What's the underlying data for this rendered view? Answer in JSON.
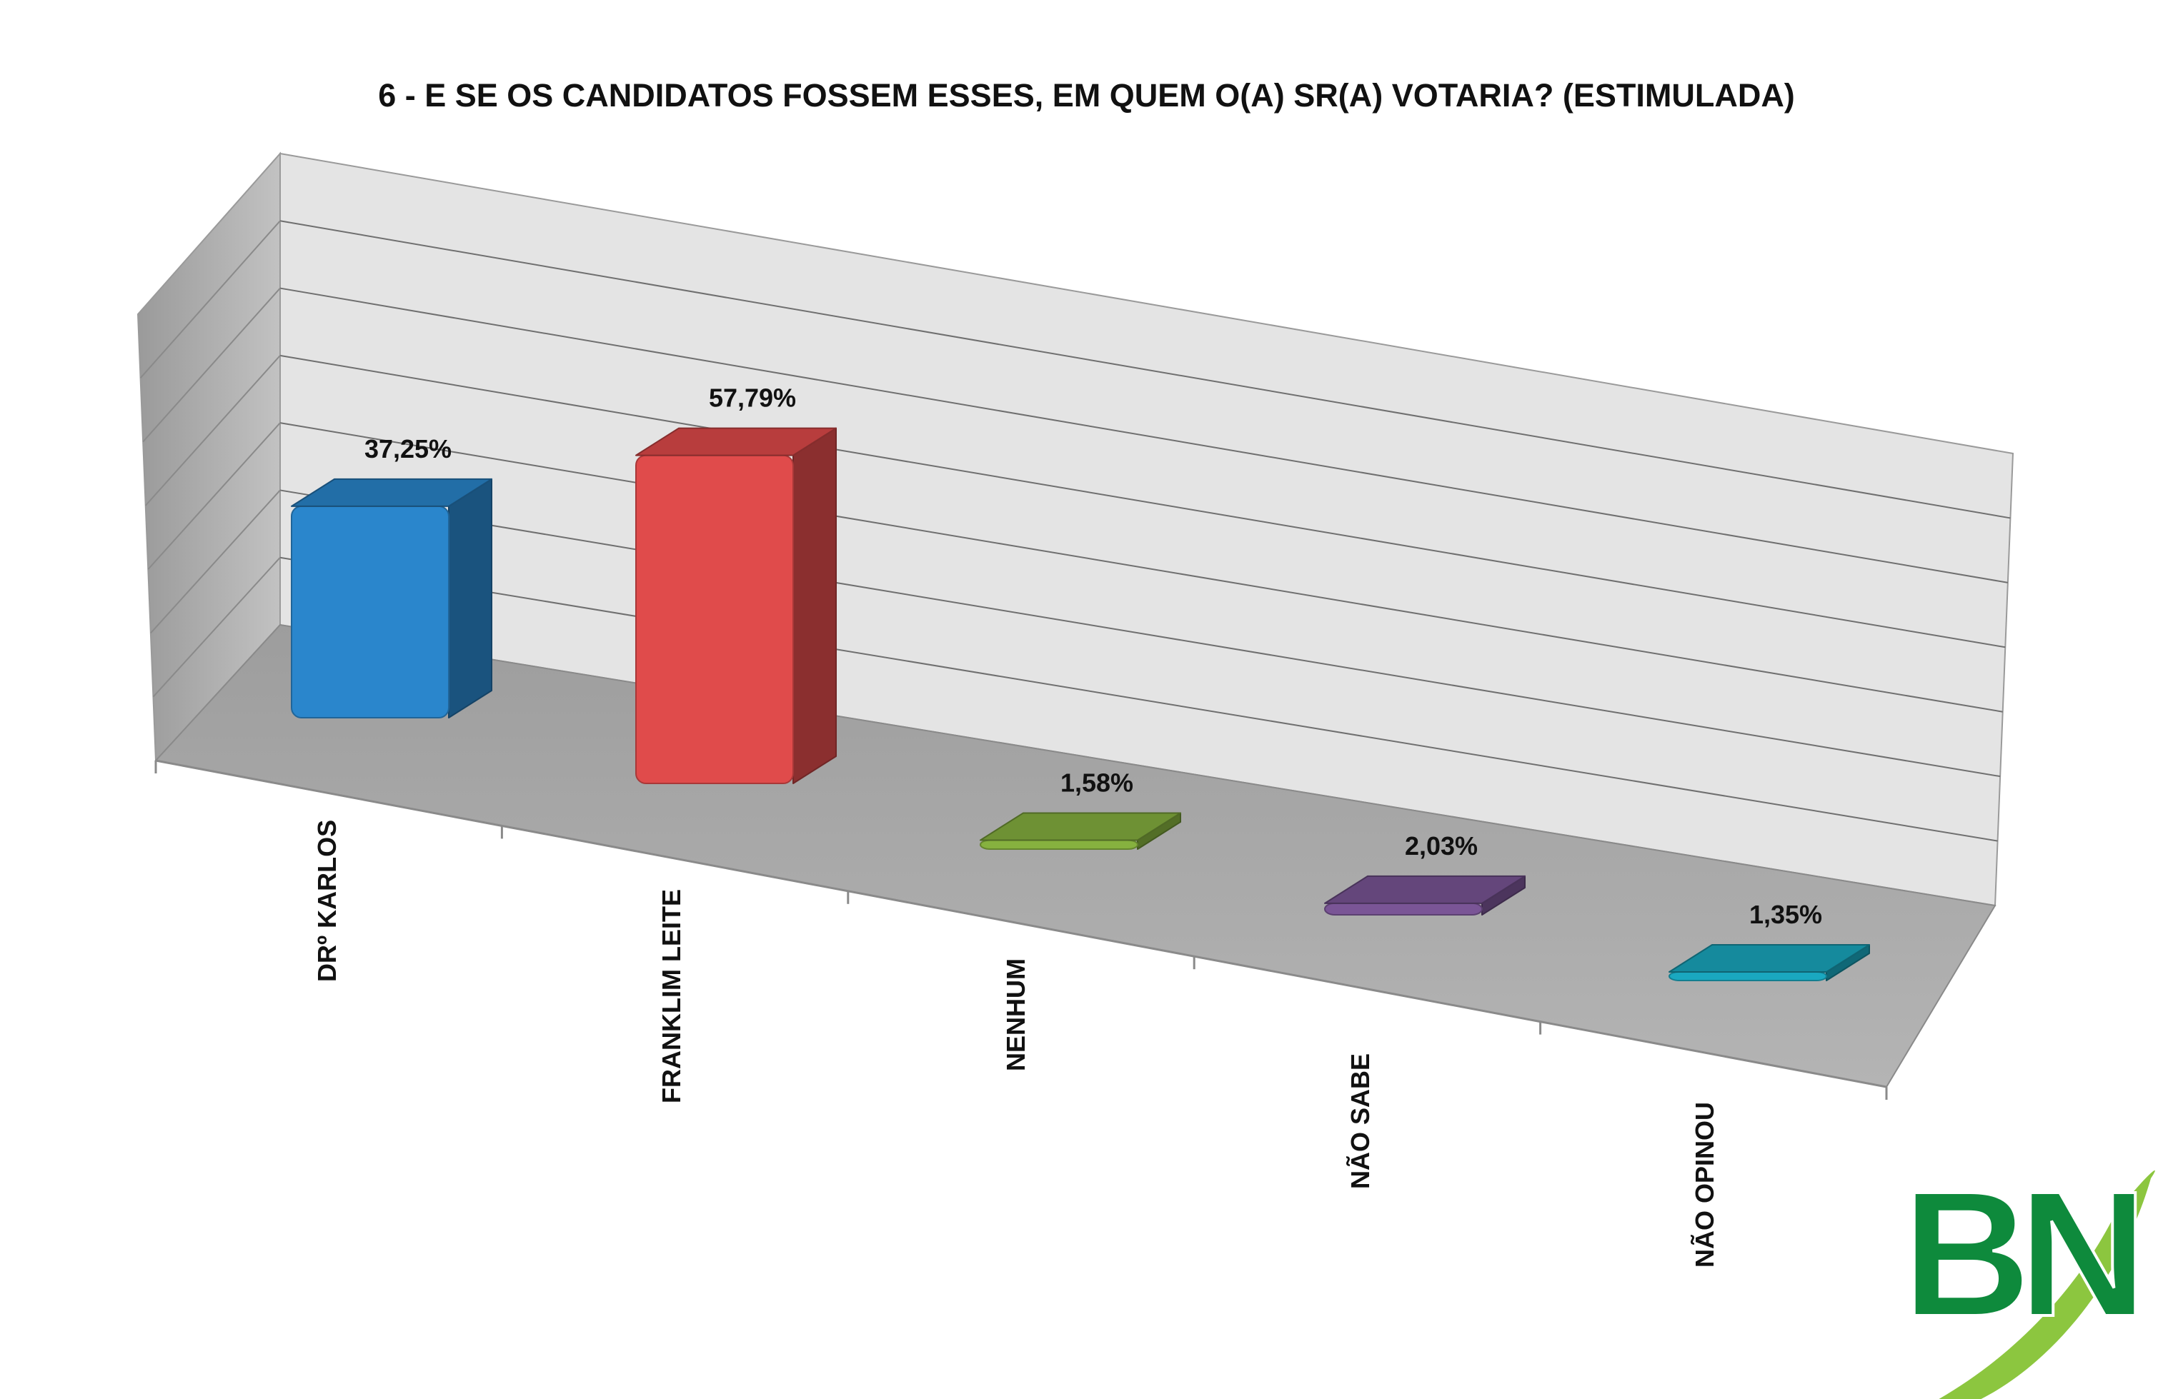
{
  "chart_data": {
    "type": "bar",
    "title": "6 - E SE OS CANDIDATOS FOSSEM ESSES, EM QUEM O(A) SR(A) VOTARIA? (ESTIMULADA)",
    "categories": [
      "DRº KARLOS",
      "FRANKLIM LEITE",
      "NENHUM",
      "NÃO SABE",
      "NÃO OPINOU"
    ],
    "values": [
      37.25,
      57.79,
      1.58,
      2.03,
      1.35
    ],
    "value_labels": [
      "37,25%",
      "57,79%",
      "1,58%",
      "2,03%",
      "1,35%"
    ],
    "unit": "%",
    "ylim": [
      0,
      70
    ],
    "grid": true,
    "style": "3d-bar",
    "colors": [
      "#2a86cc",
      "#e04b4b",
      "#86b13f",
      "#7a5596",
      "#1aa8c0"
    ]
  },
  "logo": {
    "text": "BN",
    "colors": [
      "#0e8a3c",
      "#8cc63f"
    ]
  }
}
